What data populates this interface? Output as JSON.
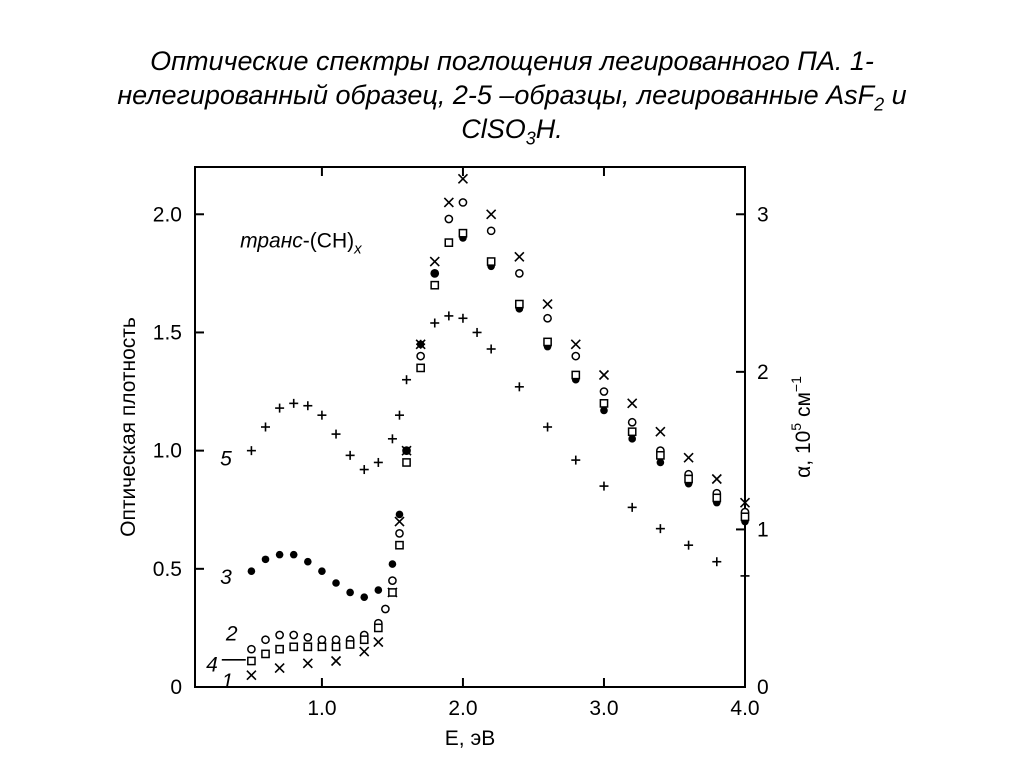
{
  "slide": {
    "title_line1": "Оптические спектры поглощения легированного ПА. 1-",
    "title_line2_pre": "нелегированный образец, 2-5 –образцы, легированные AsF",
    "title_line2_sub": "2",
    "title_line2_post": " и",
    "title_line3_pre": "ClSO",
    "title_line3_sub": "3",
    "title_line3_post": "H."
  },
  "chart_data": {
    "type": "scatter",
    "xlabel": "E, эВ",
    "ylabel": "Оптическая плотность",
    "y2label_prefix": "α, 10",
    "y2label_exp": "5",
    "y2label_unit": " см",
    "y2label_unit_exp": "−1",
    "xlim": [
      0.1,
      4.0
    ],
    "ylim": [
      0,
      2.2
    ],
    "y2lim": [
      0,
      3.3
    ],
    "x_ticks": [
      1.0,
      2.0,
      3.0,
      4.0
    ],
    "x_tick_labels": [
      "1.0",
      "2.0",
      "3.0",
      "4.0"
    ],
    "y_ticks": [
      0,
      0.5,
      1.0,
      1.5,
      2.0
    ],
    "y_tick_labels": [
      "0",
      "0.5",
      "1.0",
      "1.5",
      "2.0"
    ],
    "y2_ticks": [
      0,
      1,
      2,
      3
    ],
    "y2_tick_labels": [
      "0",
      "1",
      "2",
      "3"
    ],
    "annotation_italic": "транс",
    "annotation_rest": "-(CH)",
    "annotation_sub": "x",
    "grid": false,
    "series": [
      {
        "label": "1",
        "marker": "x",
        "x": [
          0.5,
          0.7,
          0.9,
          1.1,
          1.3,
          1.4,
          1.5,
          1.55,
          1.6,
          1.7,
          1.8,
          1.9,
          2.0,
          2.2,
          2.4,
          2.6,
          2.8,
          3.0,
          3.2,
          3.4,
          3.6,
          3.8,
          4.0
        ],
        "y": [
          0.05,
          0.08,
          0.1,
          0.11,
          0.15,
          0.19,
          0.4,
          0.7,
          1.0,
          1.45,
          1.8,
          2.05,
          2.15,
          2.0,
          1.82,
          1.62,
          1.45,
          1.32,
          1.2,
          1.08,
          0.97,
          0.88,
          0.78
        ]
      },
      {
        "label": "2",
        "marker": "circle",
        "x": [
          0.5,
          0.6,
          0.7,
          0.8,
          0.9,
          1.0,
          1.1,
          1.2,
          1.3,
          1.4,
          1.45,
          1.5,
          1.55,
          1.6,
          1.7,
          1.8,
          1.9,
          2.0,
          2.2,
          2.4,
          2.6,
          2.8,
          3.0,
          3.2,
          3.4,
          3.6,
          3.8,
          4.0
        ],
        "y": [
          0.16,
          0.2,
          0.22,
          0.22,
          0.21,
          0.2,
          0.2,
          0.2,
          0.22,
          0.27,
          0.33,
          0.45,
          0.65,
          1.0,
          1.4,
          1.75,
          1.98,
          2.05,
          1.93,
          1.75,
          1.56,
          1.4,
          1.25,
          1.12,
          1.0,
          0.9,
          0.82,
          0.74
        ]
      },
      {
        "label": "3",
        "marker": "dot",
        "x": [
          0.5,
          0.6,
          0.7,
          0.8,
          0.9,
          1.0,
          1.1,
          1.2,
          1.3,
          1.4,
          1.5,
          1.55,
          1.6,
          1.7,
          1.8,
          1.9,
          2.0,
          2.2,
          2.4,
          2.6,
          2.8,
          3.0,
          3.2,
          3.4,
          3.6,
          3.8,
          4.0
        ],
        "y": [
          0.49,
          0.54,
          0.56,
          0.56,
          0.53,
          0.49,
          0.44,
          0.4,
          0.38,
          0.41,
          0.52,
          0.73,
          1.0,
          1.45,
          1.75,
          1.88,
          1.9,
          1.78,
          1.6,
          1.44,
          1.3,
          1.17,
          1.05,
          0.95,
          0.86,
          0.78,
          0.7
        ]
      },
      {
        "label": "4",
        "marker": "square",
        "x": [
          0.5,
          0.6,
          0.7,
          0.8,
          0.9,
          1.0,
          1.1,
          1.2,
          1.3,
          1.4,
          1.5,
          1.55,
          1.6,
          1.7,
          1.8,
          1.9,
          2.0,
          2.2,
          2.4,
          2.6,
          2.8,
          3.0,
          3.2,
          3.4,
          3.6,
          3.8,
          4.0
        ],
        "y": [
          0.11,
          0.14,
          0.16,
          0.17,
          0.17,
          0.17,
          0.17,
          0.18,
          0.2,
          0.25,
          0.4,
          0.6,
          0.95,
          1.35,
          1.7,
          1.88,
          1.92,
          1.8,
          1.62,
          1.46,
          1.32,
          1.2,
          1.08,
          0.98,
          0.88,
          0.8,
          0.72
        ]
      },
      {
        "label": "5",
        "marker": "plus",
        "x": [
          0.5,
          0.6,
          0.7,
          0.8,
          0.9,
          1.0,
          1.1,
          1.2,
          1.3,
          1.4,
          1.5,
          1.55,
          1.6,
          1.7,
          1.8,
          1.9,
          2.0,
          2.1,
          2.2,
          2.4,
          2.6,
          2.8,
          3.0,
          3.2,
          3.4,
          3.6,
          3.8,
          4.0
        ],
        "y": [
          1.0,
          1.1,
          1.18,
          1.2,
          1.19,
          1.15,
          1.07,
          0.98,
          0.92,
          0.95,
          1.05,
          1.15,
          1.3,
          1.45,
          1.54,
          1.57,
          1.56,
          1.5,
          1.43,
          1.27,
          1.1,
          0.96,
          0.85,
          0.76,
          0.67,
          0.6,
          0.53,
          0.47
        ]
      }
    ]
  }
}
